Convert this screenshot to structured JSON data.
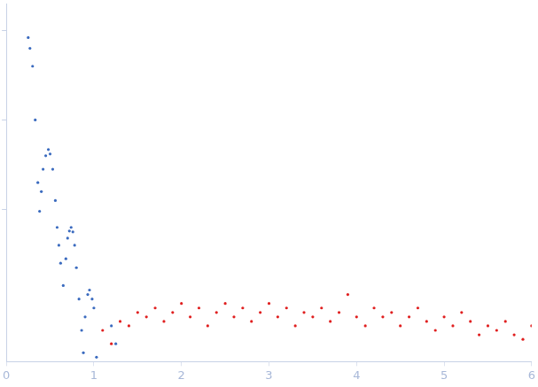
{
  "chart_data": {
    "type": "scatter",
    "xlim": [
      0,
      6
    ],
    "xticks": [
      0,
      1,
      2,
      3,
      4,
      5,
      6
    ],
    "ylim": [
      -0.7,
      3.3
    ],
    "yticks": [
      1,
      2,
      3
    ],
    "grid": false,
    "tick_labels": "x",
    "series": [
      {
        "color": "#3b6bbf",
        "marker": "circle",
        "x": [
          0.25,
          0.27,
          0.3,
          0.33,
          0.36,
          0.38,
          0.4,
          0.42,
          0.45,
          0.48,
          0.5,
          0.53,
          0.56,
          0.58,
          0.6,
          0.62,
          0.65,
          0.68,
          0.7,
          0.72,
          0.74,
          0.76,
          0.78,
          0.8,
          0.83,
          0.86,
          0.88,
          0.9,
          0.93,
          0.95,
          0.98,
          1.0,
          1.03,
          1.2,
          1.25
        ],
        "values": [
          2.92,
          2.8,
          2.6,
          2.0,
          1.3,
          0.98,
          1.2,
          1.45,
          1.6,
          1.67,
          1.62,
          1.45,
          1.1,
          0.8,
          0.6,
          0.4,
          0.15,
          0.45,
          0.68,
          0.76,
          0.8,
          0.75,
          0.6,
          0.35,
          0.0,
          -0.35,
          -0.6,
          -0.2,
          0.05,
          0.1,
          0.0,
          -0.1,
          -0.65,
          -0.3,
          -0.5
        ]
      },
      {
        "color": "#e02020",
        "marker": "circle",
        "x": [
          1.1,
          1.2,
          1.3,
          1.4,
          1.5,
          1.6,
          1.7,
          1.8,
          1.9,
          2.0,
          2.1,
          2.2,
          2.3,
          2.4,
          2.5,
          2.6,
          2.7,
          2.8,
          2.9,
          3.0,
          3.1,
          3.2,
          3.3,
          3.4,
          3.5,
          3.6,
          3.7,
          3.8,
          3.9,
          4.0,
          4.1,
          4.2,
          4.3,
          4.4,
          4.5,
          4.6,
          4.7,
          4.8,
          4.9,
          5.0,
          5.1,
          5.2,
          5.3,
          5.4,
          5.5,
          5.6,
          5.7,
          5.8,
          5.9,
          6.0
        ],
        "values": [
          -0.35,
          -0.5,
          -0.25,
          -0.3,
          -0.15,
          -0.2,
          -0.1,
          -0.25,
          -0.15,
          -0.05,
          -0.2,
          -0.1,
          -0.3,
          -0.15,
          -0.05,
          -0.2,
          -0.1,
          -0.25,
          -0.15,
          -0.05,
          -0.2,
          -0.1,
          -0.3,
          -0.15,
          -0.2,
          -0.1,
          -0.25,
          -0.15,
          0.05,
          -0.2,
          -0.3,
          -0.1,
          -0.2,
          -0.15,
          -0.3,
          -0.2,
          -0.1,
          -0.25,
          -0.35,
          -0.2,
          -0.3,
          -0.15,
          -0.25,
          -0.4,
          -0.3,
          -0.35,
          -0.25,
          -0.4,
          -0.45,
          -0.3
        ]
      }
    ]
  }
}
